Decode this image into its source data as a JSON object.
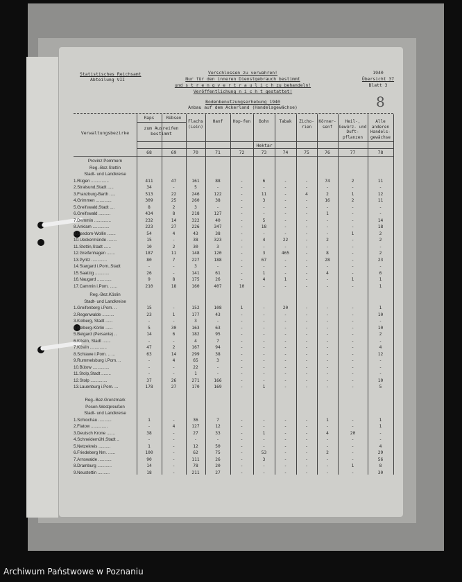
{
  "header": {
    "left": [
      "Statistisches Reichsamt",
      "Abteilung VII"
    ],
    "center": [
      "Verschlossen zu verwahren!",
      "Nur für den inneren Dienstgebrauch bestimmt",
      "und s t r e n g  v e r t r a u l i c h zu behandeln!",
      "Veröffentlichung n i c h t gestattet!"
    ],
    "right": [
      "1940",
      "Übersicht 37",
      "Blatt 3"
    ],
    "title": "Bodenbenutzungserhebung 1940",
    "subtitle": "Anbau auf dem Ackerland (Handelsgewächse)",
    "annotation": "8"
  },
  "table": {
    "row_header": "Verwaltungsbezirke",
    "columns": [
      "Raps",
      "Rübsen",
      "Flachs (Lein)",
      "Hanf",
      "Hop-fen",
      "Bohn",
      "Tabak",
      "Zicho-rien",
      "Körner-senf",
      "Heil-, Gewürz- und Duft-pflanzen",
      "Alle anderen Handels-gewächse"
    ],
    "raps_ruebsen_sub": "zum Ausreifen bestimmt",
    "unit": "Hektar",
    "col_numbers": [
      "68",
      "69",
      "70",
      "71",
      "72",
      "73",
      "74",
      "75",
      "76",
      "77",
      "78"
    ],
    "sections": [
      {
        "lines": [
          "Provinz Pommern",
          "Reg.-Bez.Stettin",
          "Stadt- und Landkreise"
        ],
        "rows": [
          [
            "1.Rügen ...............",
            "411",
            "47",
            "161",
            "88",
            "-",
            "6",
            "-",
            "-",
            "74",
            "2",
            "11"
          ],
          [
            "2.Stralsund,Stadt .....",
            "34",
            "-",
            "5",
            "-",
            "-",
            "-",
            "-",
            "-",
            "-",
            "-",
            "-"
          ],
          [
            "3.Franzburg-Barth .....",
            "513",
            "22",
            "246",
            "122",
            "-",
            "11",
            "-",
            "4",
            "2",
            "1",
            "12"
          ],
          [
            "4.Grimmen .............",
            "309",
            "25",
            "260",
            "38",
            "-",
            "3",
            "-",
            "-",
            "16",
            "2",
            "11"
          ],
          [
            "5.Greifswald,Stadt ....",
            "8",
            "2",
            "3",
            "-",
            "-",
            "-",
            "-",
            "-",
            "-",
            "-",
            "-"
          ],
          [
            "6.Greifswald ..........",
            "434",
            "8",
            "218",
            "127",
            "-",
            "-",
            "-",
            "-",
            "1",
            "-",
            "-"
          ],
          [
            "7.Demmin ..............",
            "232",
            "14",
            "322",
            "40",
            "-",
            "5",
            "-",
            "-",
            "-",
            "-",
            "14"
          ],
          [
            "8.Anklam ..............",
            "223",
            "27",
            "226",
            "347",
            "-",
            "18",
            "-",
            "-",
            "-",
            "-",
            "18"
          ],
          [
            "9.Usedom-Wollin .......",
            "54",
            "4",
            "43",
            "38",
            "-",
            "-",
            "-",
            "-",
            "-",
            "1",
            "2"
          ],
          [
            "10.Ueckermünde ........",
            "15",
            "-",
            "38",
            "323",
            "-",
            "4",
            "22",
            "-",
            "2",
            "-",
            "2"
          ],
          [
            "11.Stettin,Stadt ......",
            "10",
            "2",
            "30",
            "3",
            "-",
            "-",
            "-",
            "-",
            "-",
            "-",
            "-"
          ],
          [
            "12.Greifenhagen .......",
            "187",
            "11",
            "148",
            "120",
            "-",
            "3",
            "465",
            "-",
            "8",
            "-",
            "2"
          ],
          [
            "13.Pyritz .............",
            "80",
            "7",
            "227",
            "188",
            "-",
            "67",
            "-",
            "-",
            "28",
            "-",
            "23"
          ],
          [
            "14.Stargard i.Pom.,Stadt",
            "-",
            "-",
            "3",
            "-",
            "-",
            "-",
            "-",
            "-",
            "-",
            "-",
            "-"
          ],
          [
            "15.Saatzig ............",
            "26",
            "-",
            "141",
            "61",
            "-",
            "1",
            "-",
            "-",
            "4",
            "-",
            "6"
          ],
          [
            "16.Naugard ............",
            "9",
            "8",
            "175",
            "26",
            "-",
            "4",
            "1",
            "-",
            "-",
            "1",
            "1"
          ],
          [
            "17.Cammin i.Pom. ......",
            "210",
            "18",
            "160",
            "407",
            "10",
            "-",
            "-",
            "-",
            "-",
            "-",
            "1"
          ]
        ]
      },
      {
        "lines": [
          "Reg.-Bez.Köslin",
          "Stadt- und Landkreise"
        ],
        "rows": [
          [
            "1.Greifenberg i.Pom. ..",
            "15",
            "-",
            "152",
            "108",
            "1",
            "-",
            "20",
            "-",
            "-",
            "-",
            "1"
          ],
          [
            "2.Regenwalde ..........",
            "23",
            "1",
            "177",
            "43",
            "-",
            "-",
            "-",
            "-",
            "-",
            "-",
            "10"
          ],
          [
            "3.Kolberg, Stadt ......",
            "-",
            "-",
            "3",
            "-",
            "-",
            "-",
            "-",
            "-",
            "-",
            "-",
            "-"
          ],
          [
            "4.Kolberg-Körlin ......",
            "5",
            "30",
            "163",
            "63",
            "-",
            "-",
            "-",
            "-",
            "-",
            "-",
            "10"
          ],
          [
            "5.Belgard (Persante) ..",
            "14",
            "6",
            "182",
            "95",
            "-",
            "-",
            "-",
            "-",
            "-",
            "-",
            "2"
          ],
          [
            "6.Köslin, Stadt .......",
            "-",
            "-",
            "4",
            "7",
            "-",
            "-",
            "-",
            "-",
            "-",
            "-",
            "-"
          ],
          [
            "7.Köslin ..............",
            "47",
            "2",
            "167",
            "94",
            "-",
            "-",
            "-",
            "-",
            "-",
            "-",
            "4"
          ],
          [
            "8.Schlawe i.Pom. .. ...",
            "63",
            "14",
            "299",
            "38",
            "-",
            "-",
            "-",
            "-",
            "-",
            "-",
            "12"
          ],
          [
            "9.Rummelsburg i.Pom. ..",
            "-",
            "4",
            "65",
            "3",
            "-",
            "-",
            "-",
            "-",
            "-",
            "-",
            "-"
          ],
          [
            "10.Bütow ..............",
            "-",
            "-",
            "22",
            "-",
            "-",
            "-",
            "-",
            "-",
            "-",
            "-",
            "-"
          ],
          [
            "11.Stolp,Stadt ........",
            "-",
            "-",
            "1",
            "-",
            "-",
            "-",
            "-",
            "-",
            "-",
            "-",
            "-"
          ],
          [
            "12.Stolp ..............",
            "37",
            "26",
            "271",
            "166",
            "-",
            "-",
            "-",
            "-",
            "-",
            "-",
            "10"
          ],
          [
            "13.Lauenburg i.Pom. ...",
            "178",
            "27",
            "170",
            "169",
            "-",
            "1",
            "-",
            "-",
            "-",
            "-",
            "5"
          ]
        ]
      },
      {
        "lines": [
          "Reg.-Bez.Grenzmark",
          "Posen-Westpreußen",
          "Stadt- und Landkreise"
        ],
        "rows": [
          [
            "1.Schlochau ...........",
            "1",
            "-",
            "36",
            "7",
            "-",
            "-",
            "-",
            "-",
            "1",
            "-",
            "1"
          ],
          [
            "2.Flatow ..............",
            "-",
            "4",
            "127",
            "12",
            "-",
            "-",
            "-",
            "-",
            "-",
            "-",
            "1"
          ],
          [
            "3.Deutsch Krone .......",
            "38",
            "-",
            "27",
            "33",
            "-",
            "1",
            "-",
            "-",
            "4",
            "20",
            "-"
          ],
          [
            "4.Schneidemühl,Stadt ..",
            "-",
            "-",
            "-",
            "-",
            "-",
            "-",
            "-",
            "-",
            "-",
            "-",
            "-"
          ],
          [
            "5.Netzekreis ..........",
            "1",
            "-",
            "12",
            "50",
            "-",
            "-",
            "-",
            "-",
            "-",
            "-",
            "4"
          ],
          [
            "6.Friedeberg Nm. ......",
            "100",
            "-",
            "62",
            "75",
            "-",
            "53",
            "-",
            "-",
            "2",
            "-",
            "29"
          ],
          [
            "7.Arnswalde ...........",
            "90",
            "-",
            "111",
            "26",
            "-",
            "3",
            "-",
            "-",
            "-",
            "-",
            "56"
          ],
          [
            "8.Dramburg ............",
            "14",
            "-",
            "78",
            "20",
            "-",
            "-",
            "-",
            "-",
            "-",
            "1",
            "8"
          ],
          [
            "9.Neustettin ..........",
            "18",
            "-",
            "211",
            "27",
            "-",
            "-",
            "-",
            "-",
            "-",
            "-",
            "30"
          ]
        ]
      }
    ]
  },
  "footer": "Archiwum Państwowe w Poznaniu"
}
